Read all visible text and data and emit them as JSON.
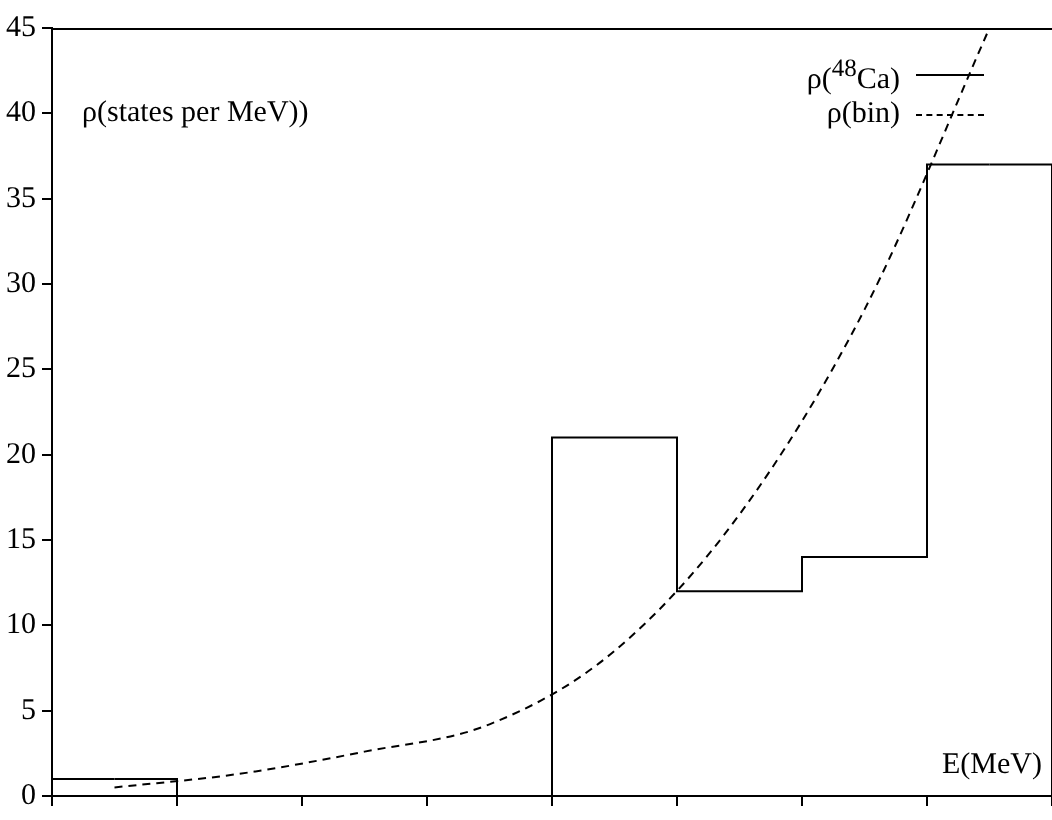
{
  "chart_data": {
    "type": "step",
    "xlabel": "E(MeV)",
    "ylabel": "ρ(states per MeV))",
    "categories": [
      null,
      null,
      null,
      null,
      null,
      null,
      null,
      null
    ],
    "series": [
      {
        "name": "ρ($^{48}$Ca)",
        "color": "#000000",
        "values": [
          1,
          0,
          0,
          0,
          21,
          12,
          14,
          37
        ]
      },
      {
        "name": "ρ(bin)",
        "type": "line",
        "color": "#000000",
        "line_style": "dashed",
        "marker": "none",
        "values": [
          0.5,
          1.3,
          2.6,
          4.2,
          8.5,
          16.5,
          28.5,
          45
        ]
      }
    ],
    "ylim": [
      0,
      45
    ],
    "yticks": [
      0,
      5,
      10,
      15,
      20,
      25,
      30,
      35,
      40,
      45
    ],
    "tick_labels": "y",
    "grid": false,
    "legend": "top right"
  }
}
